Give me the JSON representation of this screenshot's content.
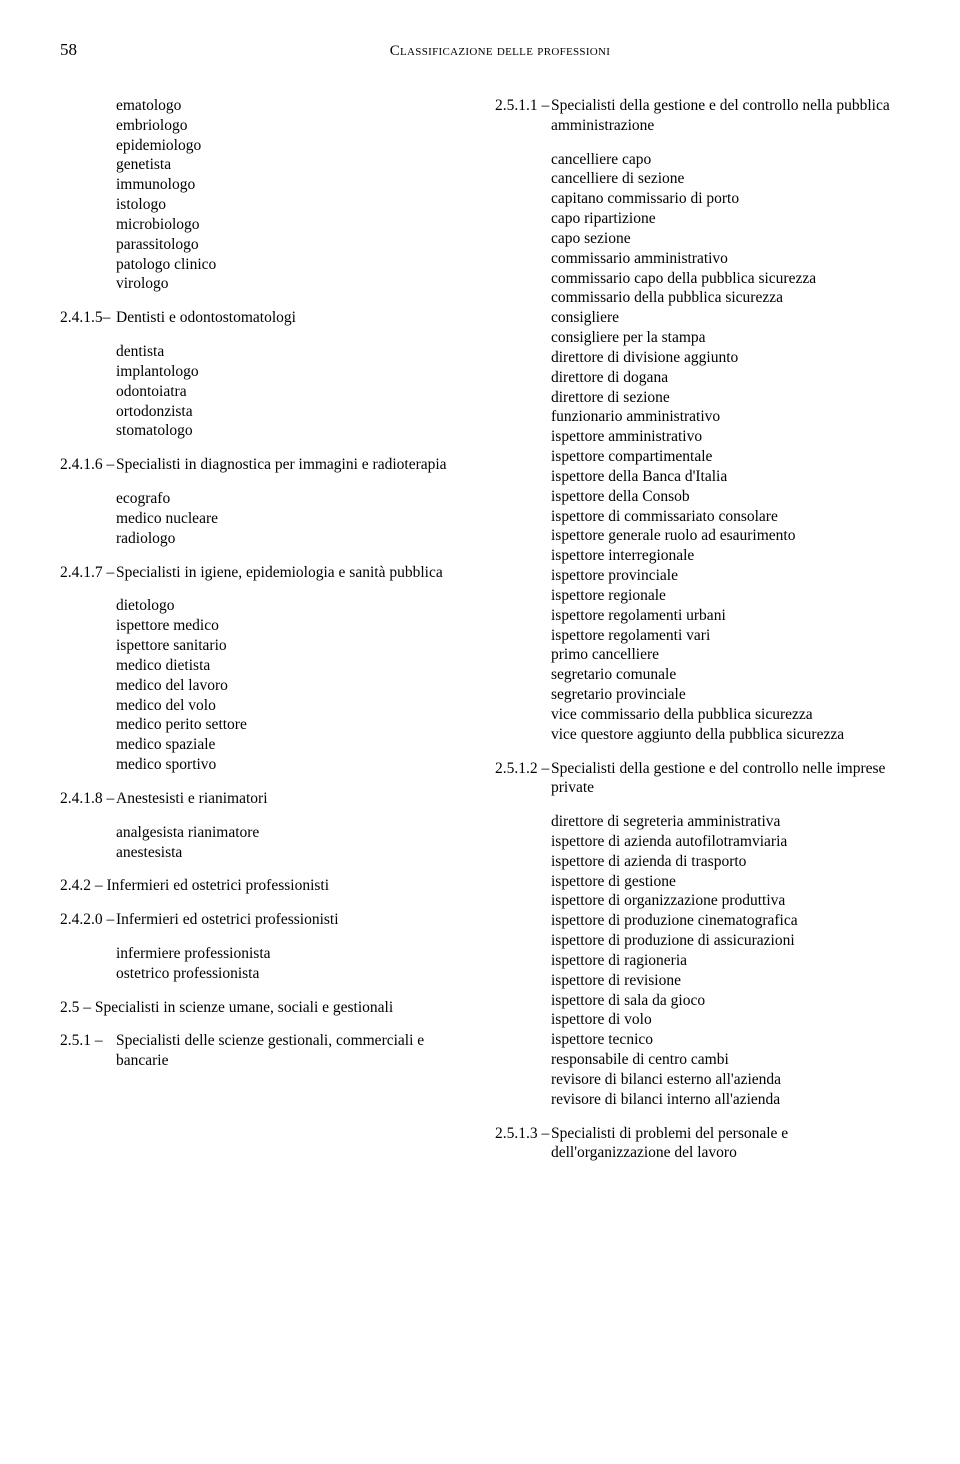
{
  "page_number": "58",
  "header_title": "Classificazione delle professioni",
  "left": [
    {
      "type": "list",
      "indent": 56,
      "items": [
        "ematologo",
        "embriologo",
        "epidemiologo",
        "genetista",
        "immunologo",
        "istologo",
        "microbiologo",
        "parassitologo",
        "patologo clinico",
        "virologo"
      ]
    },
    {
      "type": "code",
      "code": "2.4.1.5–",
      "label": "Dentisti e odontostomatologi"
    },
    {
      "type": "list",
      "indent": 56,
      "items": [
        "dentista",
        "implantologo",
        "odontoiatra",
        "ortodonzista",
        "stomatologo"
      ]
    },
    {
      "type": "code",
      "code": "2.4.1.6 –",
      "label": "Specialisti in diagnostica per immagini e radioterapia"
    },
    {
      "type": "list",
      "indent": 56,
      "items": [
        "ecografo",
        "medico nucleare",
        "radiologo"
      ]
    },
    {
      "type": "code",
      "code": "2.4.1.7 –",
      "label": "Specialisti in igiene, epidemiologia e sanità pubblica"
    },
    {
      "type": "list",
      "indent": 56,
      "items": [
        "dietologo",
        "ispettore medico",
        "ispettore sanitario",
        "medico dietista",
        "medico del lavoro",
        "medico del volo",
        "medico perito settore",
        "medico spaziale",
        "medico sportivo"
      ]
    },
    {
      "type": "code",
      "code": "2.4.1.8 –",
      "label": "Anestesisti e rianimatori"
    },
    {
      "type": "list",
      "indent": 56,
      "items": [
        "analgesista rianimatore",
        "anestesista"
      ]
    },
    {
      "type": "nocode",
      "indent": 0,
      "label": "2.4.2 – Infermieri ed ostetrici professionisti"
    },
    {
      "type": "code",
      "code": "2.4.2.0 –",
      "label": "Infermieri ed ostetrici professionisti"
    },
    {
      "type": "list",
      "indent": 56,
      "items": [
        "infermiere professionista",
        "ostetrico professionista"
      ]
    },
    {
      "type": "nocode",
      "indent": 0,
      "label": "2.5 – Specialisti in scienze umane, sociali e gestionali"
    },
    {
      "type": "code",
      "code": "2.5.1 –",
      "label": "Specialisti delle scienze gestionali, commerciali e bancarie"
    }
  ],
  "right": [
    {
      "type": "code",
      "code": "2.5.1.1 –",
      "label": "Specialisti della gestione e del controllo nella pubblica amministrazione"
    },
    {
      "type": "list",
      "indent": 56,
      "items": [
        "cancelliere capo",
        "cancelliere di sezione",
        "capitano commissario di porto",
        "capo ripartizione",
        "capo sezione",
        "commissario amministrativo",
        "commissario capo della pubblica sicurezza",
        "commissario della pubblica sicurezza",
        "consigliere",
        "consigliere per la stampa",
        "direttore di divisione aggiunto",
        "direttore di dogana",
        "direttore di sezione",
        "funzionario amministrativo",
        "ispettore amministrativo",
        "ispettore compartimentale",
        "ispettore della Banca d'Italia",
        "ispettore della Consob",
        "ispettore di commissariato consolare",
        "ispettore generale ruolo ad esaurimento",
        "ispettore interregionale",
        "ispettore provinciale",
        "ispettore regionale",
        "ispettore regolamenti urbani",
        "ispettore regolamenti vari",
        "primo cancelliere",
        "segretario comunale",
        "segretario provinciale",
        "vice commissario della pubblica sicurezza",
        "vice questore aggiunto della pubblica sicurezza"
      ]
    },
    {
      "type": "code",
      "code": "2.5.1.2 –",
      "label": "Specialisti della gestione e del controllo nelle imprese private"
    },
    {
      "type": "list",
      "indent": 56,
      "items": [
        "direttore di segreteria amministrativa",
        "ispettore di azienda autofilotramviaria",
        "ispettore di azienda di trasporto",
        "ispettore di gestione",
        "ispettore di organizzazione produttiva",
        "ispettore di produzione cinematografica",
        "ispettore di produzione di assicurazioni",
        "ispettore di ragioneria",
        "ispettore di revisione",
        "ispettore di sala da gioco",
        "ispettore di volo",
        "ispettore tecnico",
        "responsabile di centro cambi",
        "revisore di bilanci esterno all'azienda",
        "revisore di bilanci interno all'azienda"
      ]
    },
    {
      "type": "code",
      "code": "2.5.1.3 –",
      "label": "Specialisti di problemi del personale e dell'organizzazione del lavoro"
    }
  ]
}
